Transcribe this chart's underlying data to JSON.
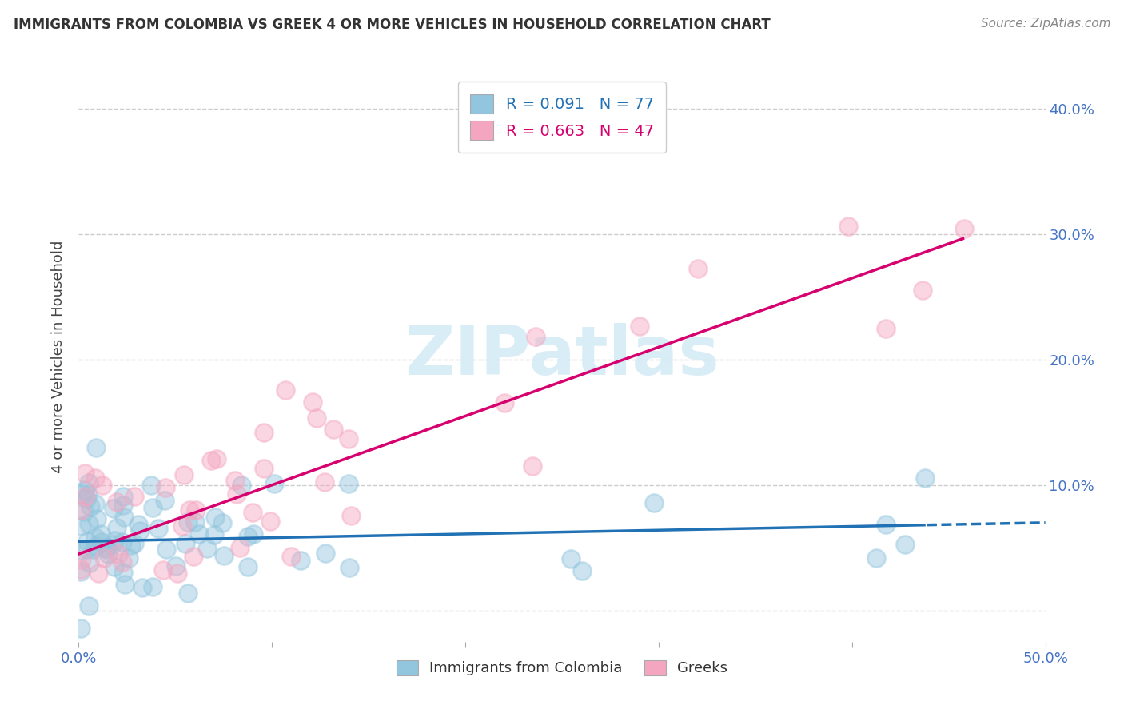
{
  "title": "IMMIGRANTS FROM COLOMBIA VS GREEK 4 OR MORE VEHICLES IN HOUSEHOLD CORRELATION CHART",
  "source": "Source: ZipAtlas.com",
  "ylabel": "4 or more Vehicles in Household",
  "xlim": [
    0.0,
    0.5
  ],
  "ylim": [
    -0.025,
    0.43
  ],
  "colombia_R": 0.091,
  "colombia_N": 77,
  "greek_R": 0.663,
  "greek_N": 47,
  "colombia_color": "#92c5de",
  "greek_color": "#f4a6c0",
  "colombia_line_color": "#2171b5",
  "greek_line_color": "#d6006e",
  "legend_colombia_label": "Immigrants from Colombia",
  "legend_greek_label": "Greeks",
  "watermark_color": "#cde8f5",
  "bg_color": "#ffffff",
  "grid_color": "#cccccc",
  "tick_color": "#4472c4",
  "title_color": "#333333",
  "source_color": "#888888",
  "xtick_vals": [
    0.0,
    0.1,
    0.2,
    0.3,
    0.4,
    0.5
  ],
  "ytick_vals": [
    0.0,
    0.1,
    0.2,
    0.3,
    0.4
  ],
  "ytick_labels_right": [
    "",
    "10.0%",
    "20.0%",
    "30.0%",
    "40.0%"
  ]
}
